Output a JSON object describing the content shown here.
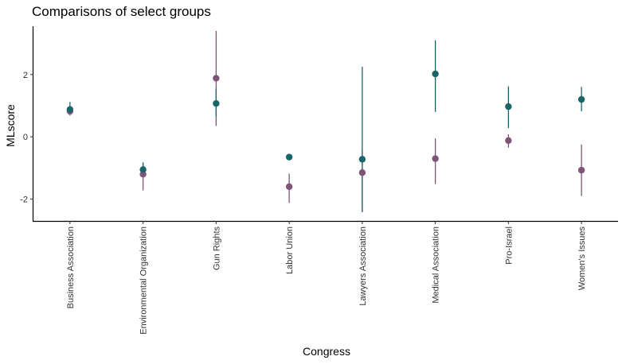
{
  "chart_data": {
    "type": "scatter",
    "title": "Comparisons of select groups",
    "xlabel": "Congress",
    "ylabel": "MLscore",
    "categories": [
      "Business Association",
      "Environmental Organization",
      "Gun Rights",
      "Labor Union",
      "Lawyers Association",
      "Medical Association",
      "Pro-Israel",
      "Women's Issues"
    ],
    "ylim": [
      -2.7,
      3.55
    ],
    "yticks": [
      -2,
      0,
      2
    ],
    "ytick_labels": [
      "-2",
      "0",
      "2"
    ],
    "grid": false,
    "legend": "none",
    "series": [
      {
        "color": "#7e5479",
        "values": [
          0.82,
          -1.2,
          1.88,
          -1.6,
          -1.15,
          -0.7,
          -0.12,
          -1.07
        ],
        "lower": [
          0.68,
          -1.72,
          0.35,
          -2.12,
          -2.4,
          -1.52,
          -0.35,
          -1.9
        ],
        "upper": [
          0.98,
          -0.85,
          3.4,
          -1.18,
          -0.42,
          -0.05,
          0.08,
          -0.25
        ]
      },
      {
        "color": "#1a6569",
        "values": [
          0.88,
          -1.05,
          1.07,
          -0.65,
          -0.72,
          2.02,
          0.97,
          1.2
        ],
        "lower": [
          0.72,
          -1.3,
          0.65,
          -0.75,
          -2.42,
          0.8,
          0.28,
          0.82
        ],
        "upper": [
          1.12,
          -0.82,
          1.55,
          -0.55,
          2.25,
          3.1,
          1.62,
          1.6
        ]
      }
    ]
  }
}
